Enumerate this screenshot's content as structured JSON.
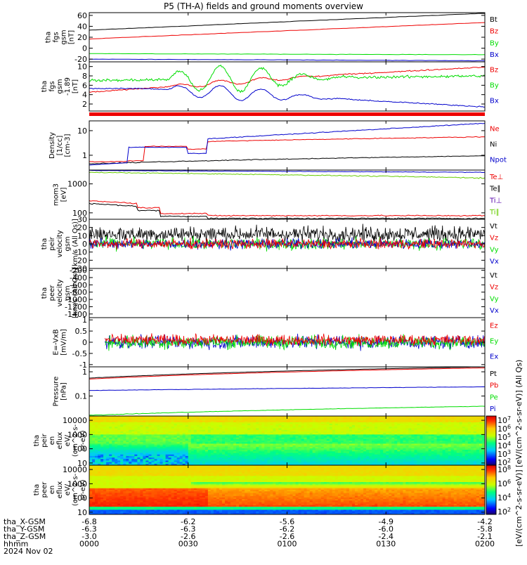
{
  "title": "P5 (TH-A) fields and ground moments overview",
  "colors": {
    "black": "#000000",
    "red": "#ee0000",
    "green": "#00dd00",
    "blue": "#0000cc",
    "ltgreen": "#66cc00",
    "purple": "#5500aa"
  },
  "chart_data": [
    {
      "type": "line",
      "name": "fgs_gsm_full",
      "ylabel_lines": [
        "tha",
        "fgs",
        "gsm",
        "[nT]"
      ],
      "ylim": [
        -25,
        65
      ],
      "yticks": [
        60,
        40,
        20,
        0,
        -20
      ],
      "series": [
        {
          "name": "Bt",
          "color": "black",
          "y": [
            33,
            64
          ]
        },
        {
          "name": "Bz",
          "color": "red",
          "y": [
            17,
            47
          ]
        },
        {
          "name": "By",
          "color": "green",
          "y": [
            -10,
            -12
          ]
        },
        {
          "name": "Bx",
          "color": "blue",
          "y": [
            -20,
            -23
          ]
        }
      ]
    },
    {
      "type": "line",
      "name": "fgs_gsm_zoom",
      "ylabel_lines": [
        "tha",
        "fgs",
        "gsm",
        "-1.89",
        "[nT]"
      ],
      "ylim": [
        0.5,
        11
      ],
      "yticks": [
        10,
        8,
        6,
        4,
        2
      ],
      "series": [
        {
          "name": "Bz",
          "color": "red"
        },
        {
          "name": "By",
          "color": "green"
        },
        {
          "name": "Bx",
          "color": "blue"
        }
      ]
    },
    {
      "type": "line",
      "name": "density",
      "ylabel_lines": [
        "Density",
        "[1/cc]",
        "[cm-3]"
      ],
      "ylog": true,
      "ylim": [
        0.25,
        25
      ],
      "yticks": [
        10,
        1
      ],
      "series": [
        {
          "name": "Ne",
          "color": "red"
        },
        {
          "name": "Ni",
          "color": "black"
        },
        {
          "name": "Npot",
          "color": "blue"
        }
      ]
    },
    {
      "type": "line",
      "name": "temperature",
      "ylabel_lines": [
        "mom3",
        "[eV]"
      ],
      "ylog": true,
      "ylim": [
        60,
        3000
      ],
      "yticks": [
        1000,
        100
      ],
      "series": [
        {
          "name": "Te⊥",
          "color": "red"
        },
        {
          "name": "Te∥",
          "color": "black"
        },
        {
          "name": "Ti⊥",
          "color": "purple"
        },
        {
          "name": "Ti∥",
          "color": "ltgreen"
        }
      ]
    },
    {
      "type": "line",
      "name": "peir_velocity",
      "ylabel_lines": [
        "tha",
        "peir",
        "velocity",
        "gsm",
        "[km/s (All Qs)]"
      ],
      "ylim": [
        -30,
        30
      ],
      "yticks": [
        30,
        20,
        10,
        0,
        -10,
        -20,
        -30
      ],
      "series": [
        {
          "name": "Vt",
          "color": "black"
        },
        {
          "name": "Vz",
          "color": "red"
        },
        {
          "name": "Vy",
          "color": "green"
        },
        {
          "name": "Vx",
          "color": "blue"
        }
      ]
    },
    {
      "type": "line",
      "name": "peer_velocity",
      "ylabel_lines": [
        "tha",
        "peer",
        "velocity",
        "gsm",
        "[km/s (All Qs)]"
      ],
      "ylim": [
        -1500,
        -150
      ],
      "yticks": [
        -200,
        -400,
        -600,
        -800,
        -1000,
        -1200,
        -1400
      ],
      "series": [
        {
          "name": "Vt",
          "color": "black"
        },
        {
          "name": "Vz",
          "color": "red"
        },
        {
          "name": "Vy",
          "color": "green"
        },
        {
          "name": "Vx",
          "color": "blue"
        }
      ]
    },
    {
      "type": "line",
      "name": "efield",
      "ylabel_lines": [
        "E=-VxB",
        "[mV/m]"
      ],
      "ylim": [
        -1.1,
        1.1
      ],
      "yticks": [
        1.0,
        0.5,
        0.0,
        -0.5,
        -1.0
      ],
      "series": [
        {
          "name": "Ez",
          "color": "red"
        },
        {
          "name": "Ey",
          "color": "green"
        },
        {
          "name": "Ex",
          "color": "blue"
        }
      ]
    },
    {
      "type": "line",
      "name": "pressure",
      "ylabel_lines": [
        "Pressure",
        "[nPa]"
      ],
      "ylog": true,
      "ylim": [
        0.015,
        1.6
      ],
      "yticks": [
        1.0,
        0.1
      ],
      "series": [
        {
          "name": "Pt",
          "color": "black"
        },
        {
          "name": "Pb",
          "color": "red"
        },
        {
          "name": "Pe",
          "color": "green"
        },
        {
          "name": "Pi",
          "color": "blue"
        }
      ]
    },
    {
      "type": "heatmap",
      "name": "peir_en_eflux",
      "ylabel_lines": [
        "tha",
        "peir",
        "en",
        "eflux",
        "eV/",
        "(cm^2-s-",
        "sr-eV)"
      ],
      "ylog": true,
      "ylim": [
        7,
        20000
      ],
      "yticks": [
        10000,
        1000,
        100,
        10
      ]
    },
    {
      "type": "heatmap",
      "name": "peer_en_eflux",
      "ylabel_lines": [
        "tha",
        "peer",
        "en",
        "eflux",
        "eV/",
        "(cm^2-s-",
        "sr-eV)"
      ],
      "ylog": true,
      "ylim": [
        7,
        20000
      ],
      "yticks": [
        10000,
        1000,
        100,
        10
      ]
    }
  ],
  "colorbars": [
    {
      "ticks": [
        "10^7",
        "10^6",
        "10^5",
        "10^4",
        "10^3",
        "10^2"
      ]
    },
    {
      "ticks": [
        "10^8",
        "10^6",
        "10^4",
        "10^2"
      ],
      "label": "[eV/(cm^2-s-sr-eV)] [eV/(cm^2-s-sr-eV)] (All Qs)"
    }
  ],
  "x_axis": {
    "rows": [
      {
        "label": "tha_X-GSM",
        "values": [
          "-6.8",
          "-6.2",
          "-5.6",
          "-4.9",
          "-4.2"
        ]
      },
      {
        "label": "tha_Y-GSM",
        "values": [
          "-6.3",
          "-6.3",
          "-6.2",
          "-6.0",
          "-5.8"
        ]
      },
      {
        "label": "tha_Z-GSM",
        "values": [
          "-3.0",
          "-2.6",
          "-2.6",
          "-2.4",
          "-2.1"
        ]
      },
      {
        "label": "hhmm",
        "values": [
          "0000",
          "0030",
          "0100",
          "0130",
          "0200"
        ]
      }
    ],
    "date": "2024 Nov 02"
  }
}
